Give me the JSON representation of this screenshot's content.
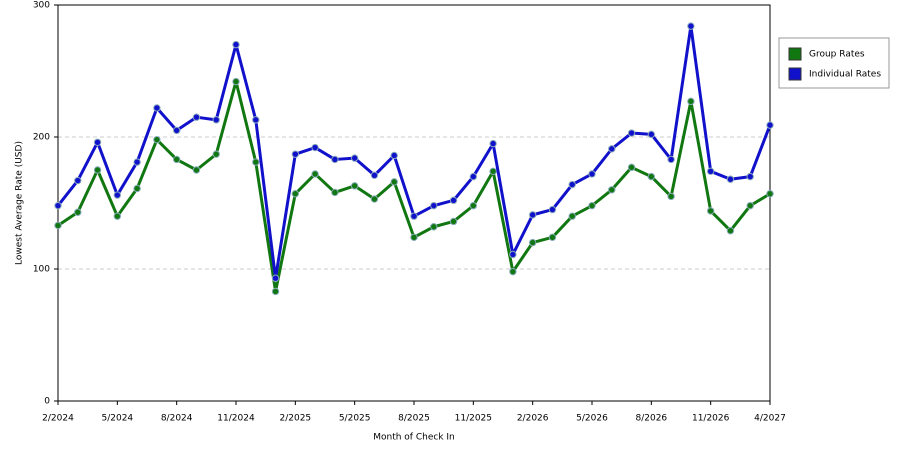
{
  "chart_data": {
    "type": "line",
    "x_label": "Month of Check In",
    "y_label": "Lowest Average Rate (USD)",
    "categories": [
      "2/2024",
      null,
      null,
      "5/2024",
      null,
      null,
      "8/2024",
      null,
      null,
      "11/2024",
      null,
      null,
      "2/2025",
      null,
      null,
      "5/2025",
      null,
      null,
      "8/2025",
      null,
      null,
      "11/2025",
      null,
      null,
      "2/2026",
      null,
      null,
      "5/2026",
      null,
      null,
      "8/2026",
      null,
      null,
      "11/2026",
      null,
      null,
      "4/2027"
    ],
    "series": [
      {
        "name": "Group Rates",
        "color": "#117711",
        "values": [
          133,
          143,
          175,
          140,
          161,
          198,
          183,
          175,
          187,
          242,
          181,
          83,
          157,
          172,
          158,
          163,
          153,
          166,
          124,
          132,
          136,
          148,
          174,
          98,
          120,
          124,
          140,
          148,
          160,
          177,
          170,
          155,
          227,
          144,
          129,
          148,
          157
        ]
      },
      {
        "name": "Individual Rates",
        "color": "#1111cc",
        "values": [
          148,
          167,
          196,
          156,
          181,
          222,
          205,
          215,
          213,
          270,
          213,
          93,
          187,
          192,
          183,
          184,
          171,
          186,
          140,
          148,
          152,
          170,
          195,
          111,
          141,
          145,
          164,
          172,
          191,
          203,
          202,
          183,
          284,
          174,
          168,
          170,
          209
        ]
      }
    ],
    "ylim": [
      0,
      300
    ],
    "yticks": [
      0,
      100,
      200,
      300
    ],
    "grid": true,
    "legend": "right"
  }
}
